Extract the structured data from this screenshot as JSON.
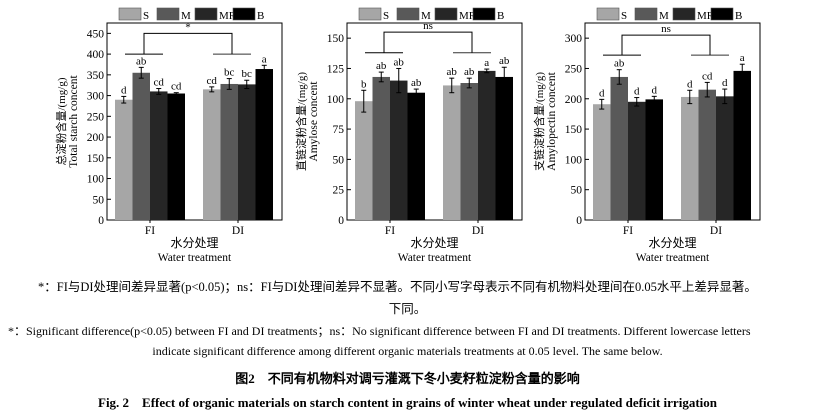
{
  "chart_data": [
    {
      "type": "bar",
      "ylabel_cn": "总淀粉含量/(mg/g)",
      "ylabel": "Total starch concent",
      "xlabel_cn": "水分处理",
      "xlabel": "Water treatment",
      "ylim": [
        0,
        475
      ],
      "yticks": [
        0,
        50,
        100,
        150,
        200,
        250,
        300,
        350,
        400,
        450
      ],
      "categories": [
        "FI",
        "DI"
      ],
      "significance": "*",
      "series": [
        {
          "name": "S",
          "values": [
            290,
            315
          ],
          "errors": [
            8,
            6
          ],
          "letters": [
            "d",
            "cd"
          ]
        },
        {
          "name": "M",
          "values": [
            355,
            328
          ],
          "errors": [
            13,
            13
          ],
          "letters": [
            "ab",
            "bc"
          ]
        },
        {
          "name": "MR",
          "values": [
            310,
            327
          ],
          "errors": [
            7,
            10
          ],
          "letters": [
            "cd",
            "bc"
          ]
        },
        {
          "name": "B",
          "values": [
            305,
            364
          ],
          "errors": [
            2,
            9
          ],
          "letters": [
            "cd",
            "a"
          ]
        }
      ],
      "bracket_levels": [
        400,
        450
      ]
    },
    {
      "type": "bar",
      "ylabel_cn": "直链淀粉含量/(mg/g)",
      "ylabel": "Amylose concent",
      "xlabel_cn": "水分处理",
      "xlabel": "Water treatment",
      "ylim": [
        0,
        162.5
      ],
      "yticks": [
        0,
        25,
        50,
        75,
        100,
        125,
        150
      ],
      "categories": [
        "FI",
        "DI"
      ],
      "significance": "ns",
      "series": [
        {
          "name": "S",
          "values": [
            98,
            111
          ],
          "errors": [
            9,
            6
          ],
          "letters": [
            "b",
            "ab"
          ]
        },
        {
          "name": "M",
          "values": [
            118,
            113
          ],
          "errors": [
            4,
            4
          ],
          "letters": [
            "ab",
            "ab"
          ]
        },
        {
          "name": "MR",
          "values": [
            115,
            123
          ],
          "errors": [
            10,
            1.5
          ],
          "letters": [
            "ab",
            "a"
          ]
        },
        {
          "name": "B",
          "values": [
            105,
            118
          ],
          "errors": [
            3,
            8
          ],
          "letters": [
            "ab",
            "ab"
          ]
        }
      ],
      "bracket_levels": [
        138,
        155
      ]
    },
    {
      "type": "bar",
      "ylabel_cn": "支链淀粉含量/(mg/g)",
      "ylabel": "Amylopectin concent",
      "xlabel_cn": "水分处理",
      "xlabel": "Water treatment",
      "ylim": [
        0,
        325
      ],
      "yticks": [
        0,
        50,
        100,
        150,
        200,
        250,
        300
      ],
      "categories": [
        "FI",
        "DI"
      ],
      "significance": "ns",
      "series": [
        {
          "name": "S",
          "values": [
            191,
            203
          ],
          "errors": [
            8,
            11
          ],
          "letters": [
            "d",
            "d"
          ]
        },
        {
          "name": "M",
          "values": [
            236,
            215
          ],
          "errors": [
            12,
            12
          ],
          "letters": [
            "ab",
            "cd"
          ]
        },
        {
          "name": "MR",
          "values": [
            195,
            204
          ],
          "errors": [
            7,
            12
          ],
          "letters": [
            "d",
            "d"
          ]
        },
        {
          "name": "B",
          "values": [
            199,
            246
          ],
          "errors": [
            5,
            11
          ],
          "letters": [
            "d",
            "a"
          ]
        }
      ],
      "bracket_levels": [
        272,
        305
      ]
    }
  ],
  "colors": {
    "S": "#a6a6a6",
    "M": "#595959",
    "MR": "#262626",
    "B": "#000000"
  },
  "captions": {
    "note_cn_1": "*：FI与DI处理间差异显著(p<0.05)；ns：FI与DI处理间差异不显著。不同小写字母表示不同有机物料处理间在0.05水平上差异显著。",
    "note_cn_2": "下同。",
    "note_en_1": "*：Significant difference(p<0.05) between FI and DI treatments；ns：No significant difference between FI and DI treatments. Different lowercase letters",
    "note_en_2": "indicate significant difference among different organic materials treatments at 0.05 level. The same below.",
    "title_cn": "图2　不同有机物料对调亏灌溉下冬小麦籽粒淀粉含量的影响",
    "title_en": "Fig. 2　Effect of organic materials on starch content in grains of winter wheat under regulated deficit irrigation"
  }
}
